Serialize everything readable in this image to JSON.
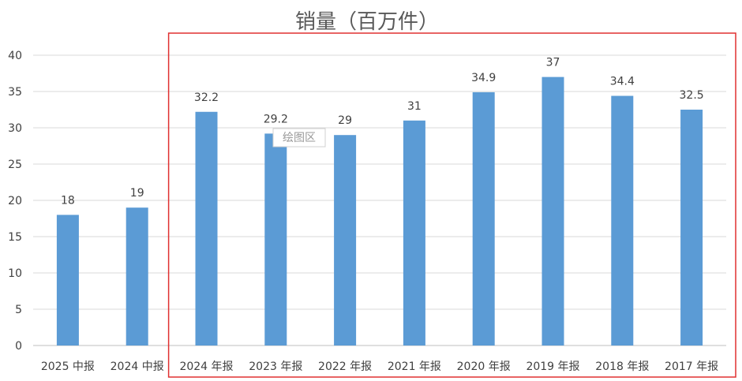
{
  "chart_data": {
    "type": "bar",
    "title": "销量（百万件）",
    "categories": [
      "2025 中报",
      "2024 中报",
      "2024 年报",
      "2023 年报",
      "2022 年报",
      "2021 年报",
      "2020 年报",
      "2019 年报",
      "2018 年报",
      "2017 年报"
    ],
    "values": [
      18,
      19,
      32.2,
      29.2,
      29,
      31,
      34.9,
      37,
      34.4,
      32.5
    ],
    "value_labels": [
      "18",
      "19",
      "32.2",
      "29.2",
      "29",
      "31",
      "34.9",
      "37",
      "34.4",
      "32.5"
    ],
    "ylim": [
      0,
      40
    ],
    "yticks": [
      "0",
      "5",
      "10",
      "15",
      "20",
      "25",
      "30",
      "35",
      "40"
    ],
    "grid": true,
    "legend": "none",
    "bar_color": "#5B9BD5",
    "highlight_color": "#E03030",
    "highlight_categories": [
      "2024 年报",
      "2017 年报"
    ],
    "tooltip": "绘图区"
  }
}
